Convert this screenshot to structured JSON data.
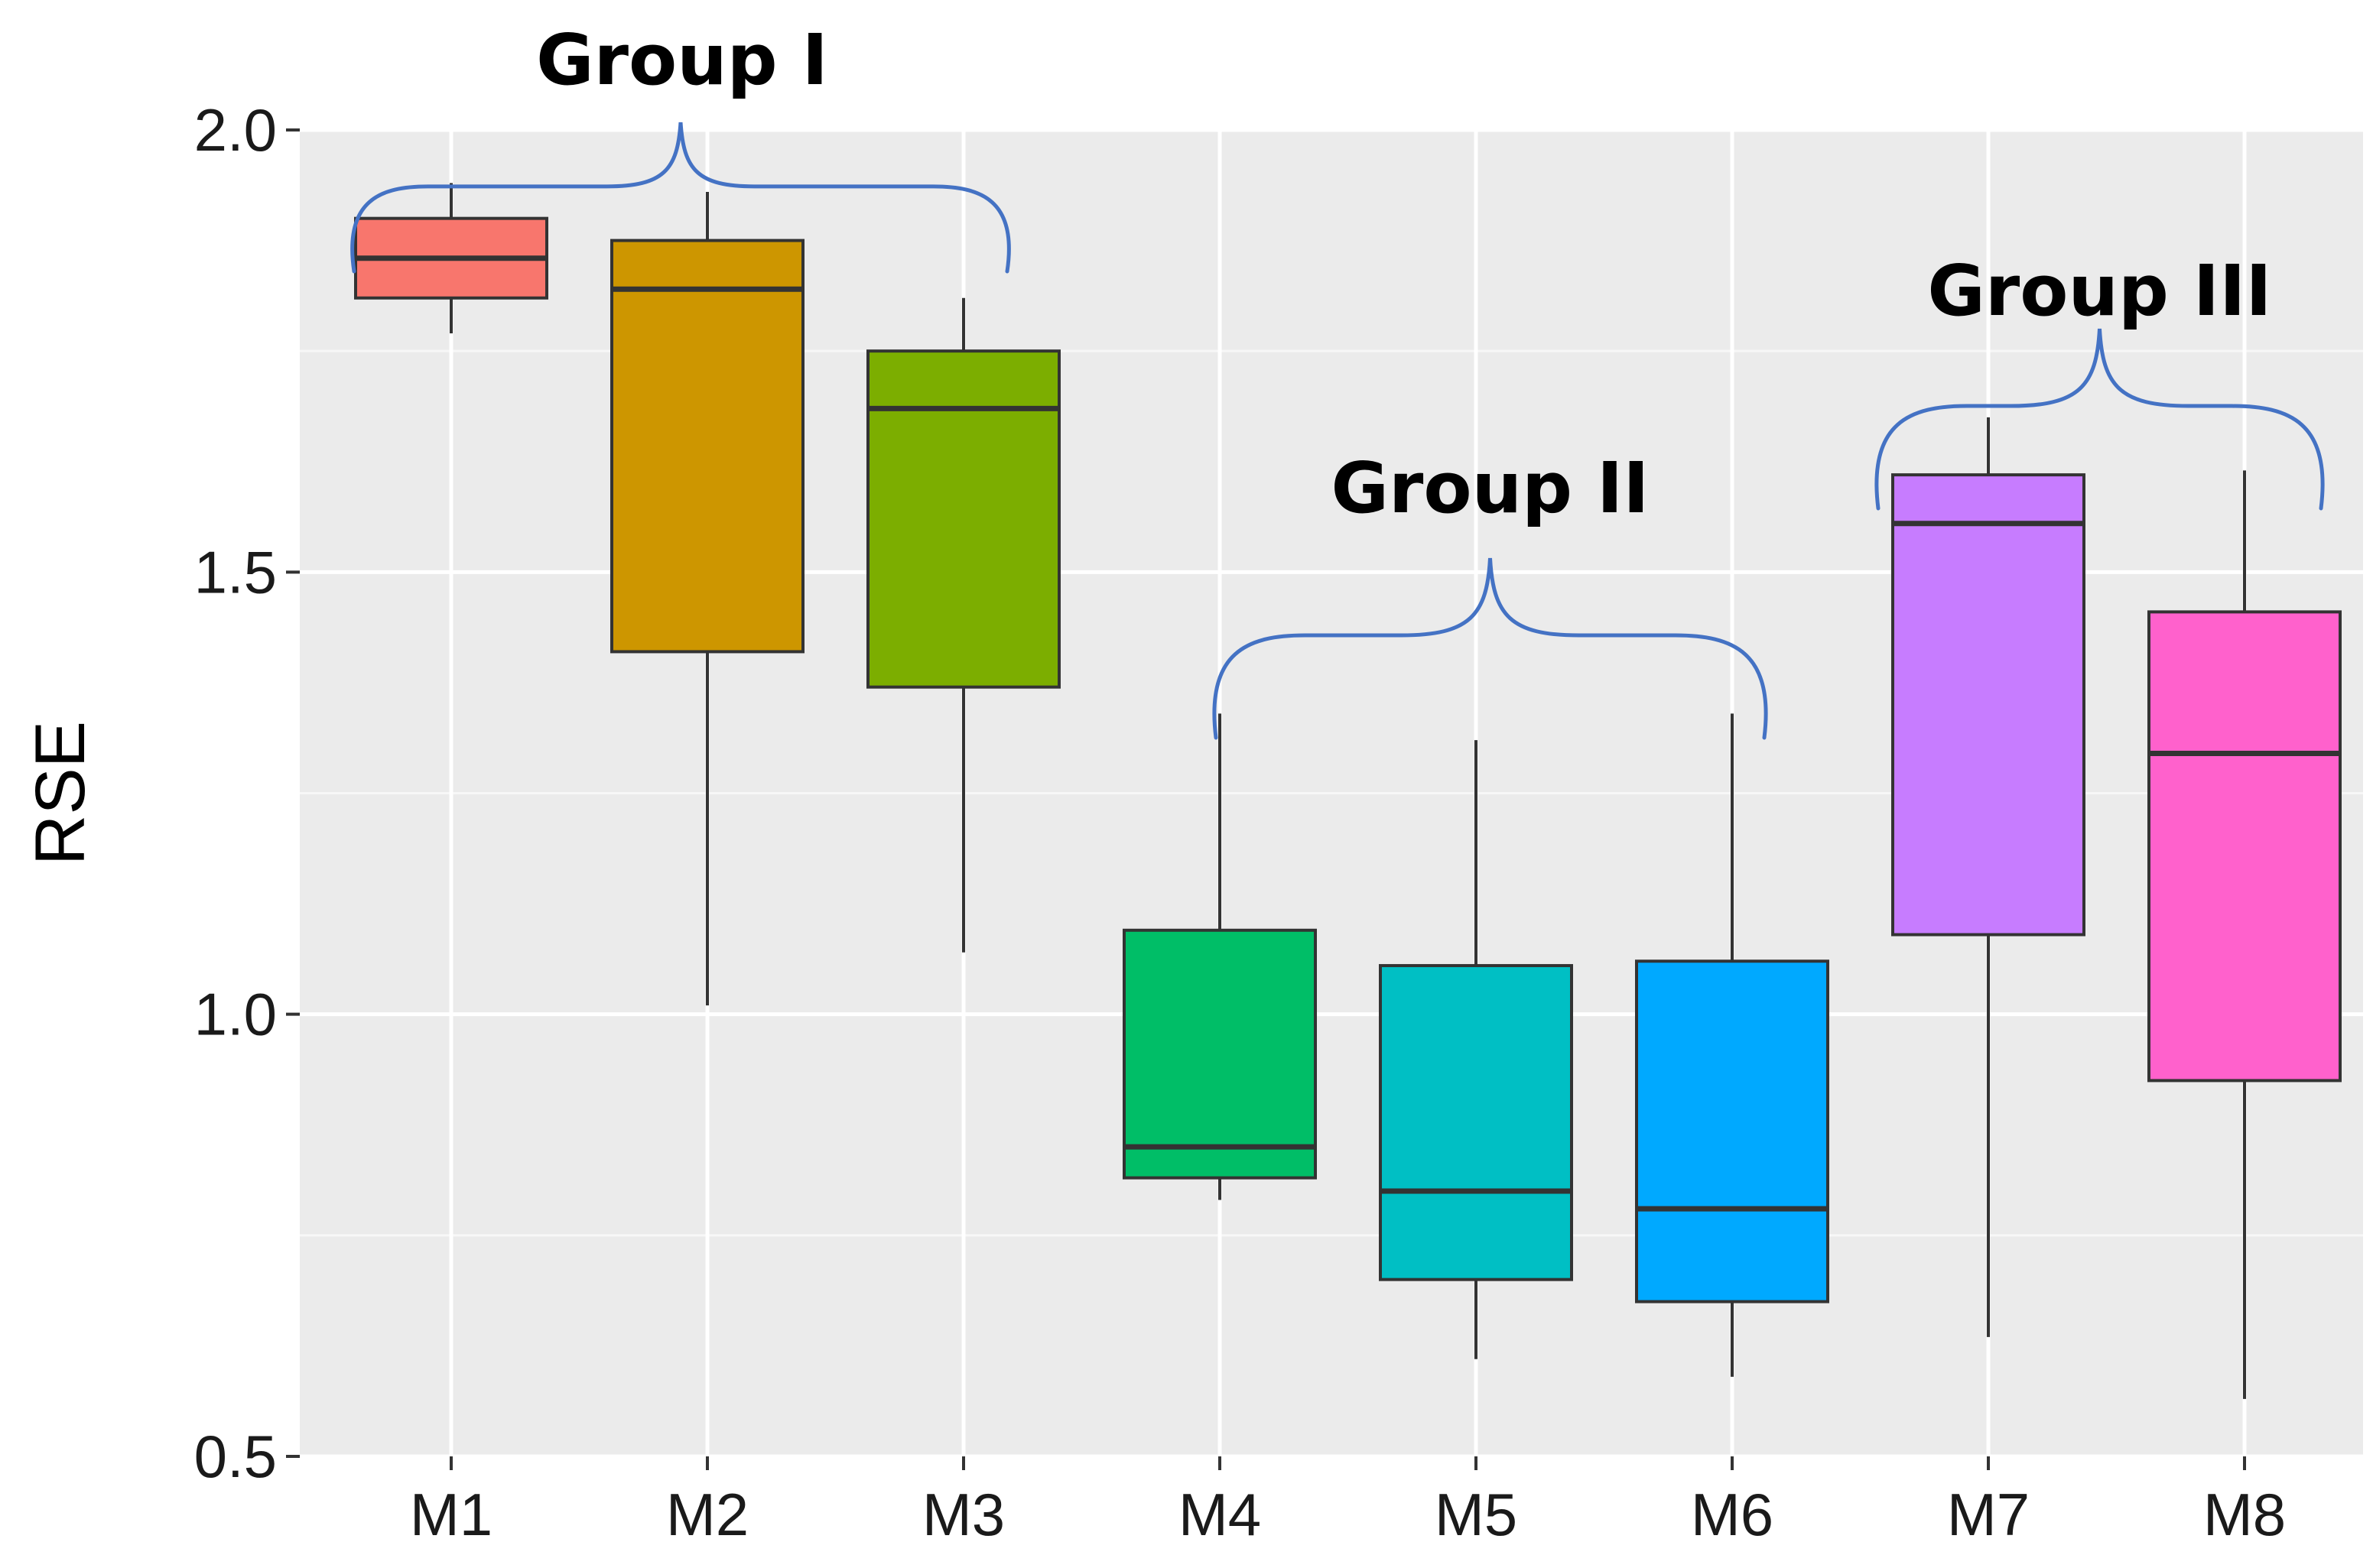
{
  "chart_data": {
    "type": "boxplot",
    "title": "",
    "xlabel": "",
    "ylabel": "RSE",
    "ylim": [
      0.5,
      2.0
    ],
    "yticks": [
      "0.5",
      "1.0",
      "1.5",
      "2.0"
    ],
    "grid": true,
    "panel_background": "#ebebeb",
    "categories": [
      "M1",
      "M2",
      "M3",
      "M4",
      "M5",
      "M6",
      "M7",
      "M8"
    ],
    "boxes": [
      {
        "name": "M1",
        "min": 1.77,
        "q1": 1.81,
        "median": 1.855,
        "q3": 1.9,
        "max": 1.94,
        "color": "#f8766d"
      },
      {
        "name": "M2",
        "min": 1.01,
        "q1": 1.41,
        "median": 1.82,
        "q3": 1.875,
        "max": 1.93,
        "color": "#cd9600"
      },
      {
        "name": "M3",
        "min": 1.07,
        "q1": 1.37,
        "median": 1.685,
        "q3": 1.75,
        "max": 1.81,
        "color": "#7cae00"
      },
      {
        "name": "M4",
        "min": 0.79,
        "q1": 0.815,
        "median": 0.85,
        "q3": 1.095,
        "max": 1.34,
        "color": "#00be67"
      },
      {
        "name": "M5",
        "min": 0.61,
        "q1": 0.7,
        "median": 0.8,
        "q3": 1.055,
        "max": 1.31,
        "color": "#00bfc4"
      },
      {
        "name": "M6",
        "min": 0.59,
        "q1": 0.675,
        "median": 0.78,
        "q3": 1.06,
        "max": 1.34,
        "color": "#00a9ff"
      },
      {
        "name": "M7",
        "min": 0.635,
        "q1": 1.09,
        "median": 1.555,
        "q3": 1.61,
        "max": 1.675,
        "color": "#c77cff"
      },
      {
        "name": "M8",
        "min": 0.565,
        "q1": 0.925,
        "median": 1.295,
        "q3": 1.455,
        "max": 1.615,
        "color": "#ff61cc"
      }
    ],
    "annotations": [
      {
        "label": "Group I",
        "members": [
          "M1",
          "M2",
          "M3"
        ]
      },
      {
        "label": "Group II",
        "members": [
          "M4",
          "M5",
          "M6"
        ]
      },
      {
        "label": "Group III",
        "members": [
          "M7",
          "M8"
        ]
      }
    ],
    "bracket_color": "#4472c4"
  }
}
